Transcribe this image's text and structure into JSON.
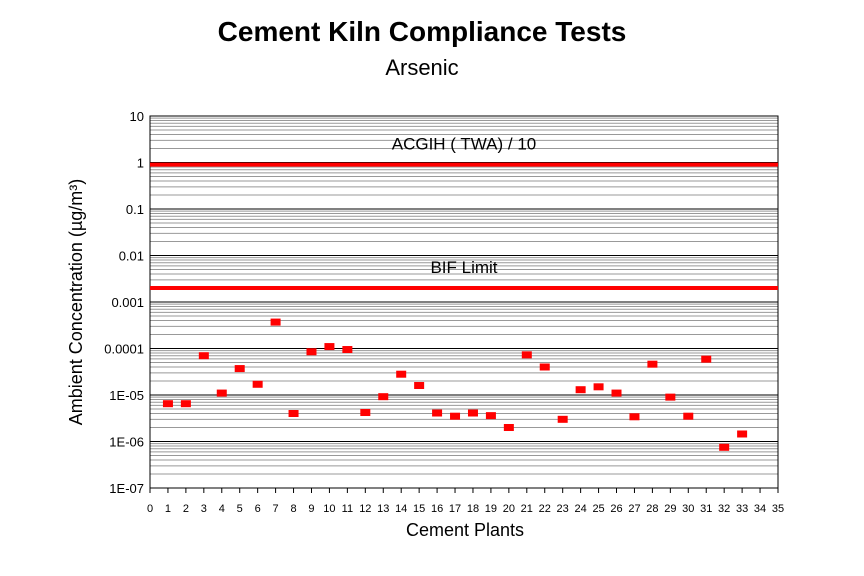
{
  "chart_data": {
    "type": "scatter",
    "title": "Cement Kiln Compliance Tests",
    "subtitle": "Arsenic",
    "xlabel": "Cement Plants",
    "ylabel": "Ambient Concentration (µg/m³)",
    "xlim": [
      0,
      35
    ],
    "ylim": [
      1e-07,
      10
    ],
    "y_scale": "log",
    "grid": "horizontal-minor",
    "x_ticks": [
      "0",
      "1",
      "2",
      "3",
      "4",
      "5",
      "6",
      "7",
      "8",
      "9",
      "10",
      "11",
      "12",
      "13",
      "14",
      "15",
      "16",
      "17",
      "18",
      "19",
      "20",
      "21",
      "22",
      "23",
      "24",
      "25",
      "26",
      "27",
      "28",
      "29",
      "30",
      "31",
      "32",
      "33",
      "34",
      "35"
    ],
    "y_ticks": [
      {
        "label": "10",
        "value": 10
      },
      {
        "label": "1",
        "value": 1
      },
      {
        "label": "0.1",
        "value": 0.1
      },
      {
        "label": "0.01",
        "value": 0.01
      },
      {
        "label": "0.001",
        "value": 0.001
      },
      {
        "label": "0.0001",
        "value": 0.0001
      },
      {
        "label": "1E-05",
        "value": 1e-05
      },
      {
        "label": "1E-06",
        "value": 1e-06
      },
      {
        "label": "1E-07",
        "value": 1e-07
      }
    ],
    "reference_lines": [
      {
        "label": "ACGIH ( TWA) / 10",
        "value": 0.9,
        "color": "#ff0000"
      },
      {
        "label": "BIF Limit",
        "value": 0.002,
        "color": "#ff0000"
      }
    ],
    "marker_color": "#ff0000",
    "points": [
      {
        "x": 1,
        "y": 6.5e-06
      },
      {
        "x": 2,
        "y": 6.5e-06
      },
      {
        "x": 3,
        "y": 7e-05
      },
      {
        "x": 4,
        "y": 1.1e-05
      },
      {
        "x": 5,
        "y": 3.7e-05
      },
      {
        "x": 6,
        "y": 1.7e-05
      },
      {
        "x": 7,
        "y": 0.00037
      },
      {
        "x": 8,
        "y": 4e-06
      },
      {
        "x": 9,
        "y": 8.5e-05
      },
      {
        "x": 10,
        "y": 0.00011
      },
      {
        "x": 11,
        "y": 9.5e-05
      },
      {
        "x": 12,
        "y": 4.2e-06
      },
      {
        "x": 13,
        "y": 9.2e-06
      },
      {
        "x": 14,
        "y": 2.8e-05
      },
      {
        "x": 15,
        "y": 1.6e-05
      },
      {
        "x": 16,
        "y": 4.1e-06
      },
      {
        "x": 17,
        "y": 3.5e-06
      },
      {
        "x": 18,
        "y": 4.1e-06
      },
      {
        "x": 19,
        "y": 3.6e-06
      },
      {
        "x": 20,
        "y": 2e-06
      },
      {
        "x": 21,
        "y": 7.3e-05
      },
      {
        "x": 22,
        "y": 4e-05
      },
      {
        "x": 23,
        "y": 3e-06
      },
      {
        "x": 24,
        "y": 1.3e-05
      },
      {
        "x": 25,
        "y": 1.5e-05
      },
      {
        "x": 26,
        "y": 1.1e-05
      },
      {
        "x": 27,
        "y": 3.4e-06
      },
      {
        "x": 28,
        "y": 4.6e-05
      },
      {
        "x": 29,
        "y": 9e-06
      },
      {
        "x": 30,
        "y": 3.5e-06
      },
      {
        "x": 31,
        "y": 5.9e-05
      },
      {
        "x": 32,
        "y": 7.5e-07
      },
      {
        "x": 33,
        "y": 1.45e-06
      }
    ]
  }
}
